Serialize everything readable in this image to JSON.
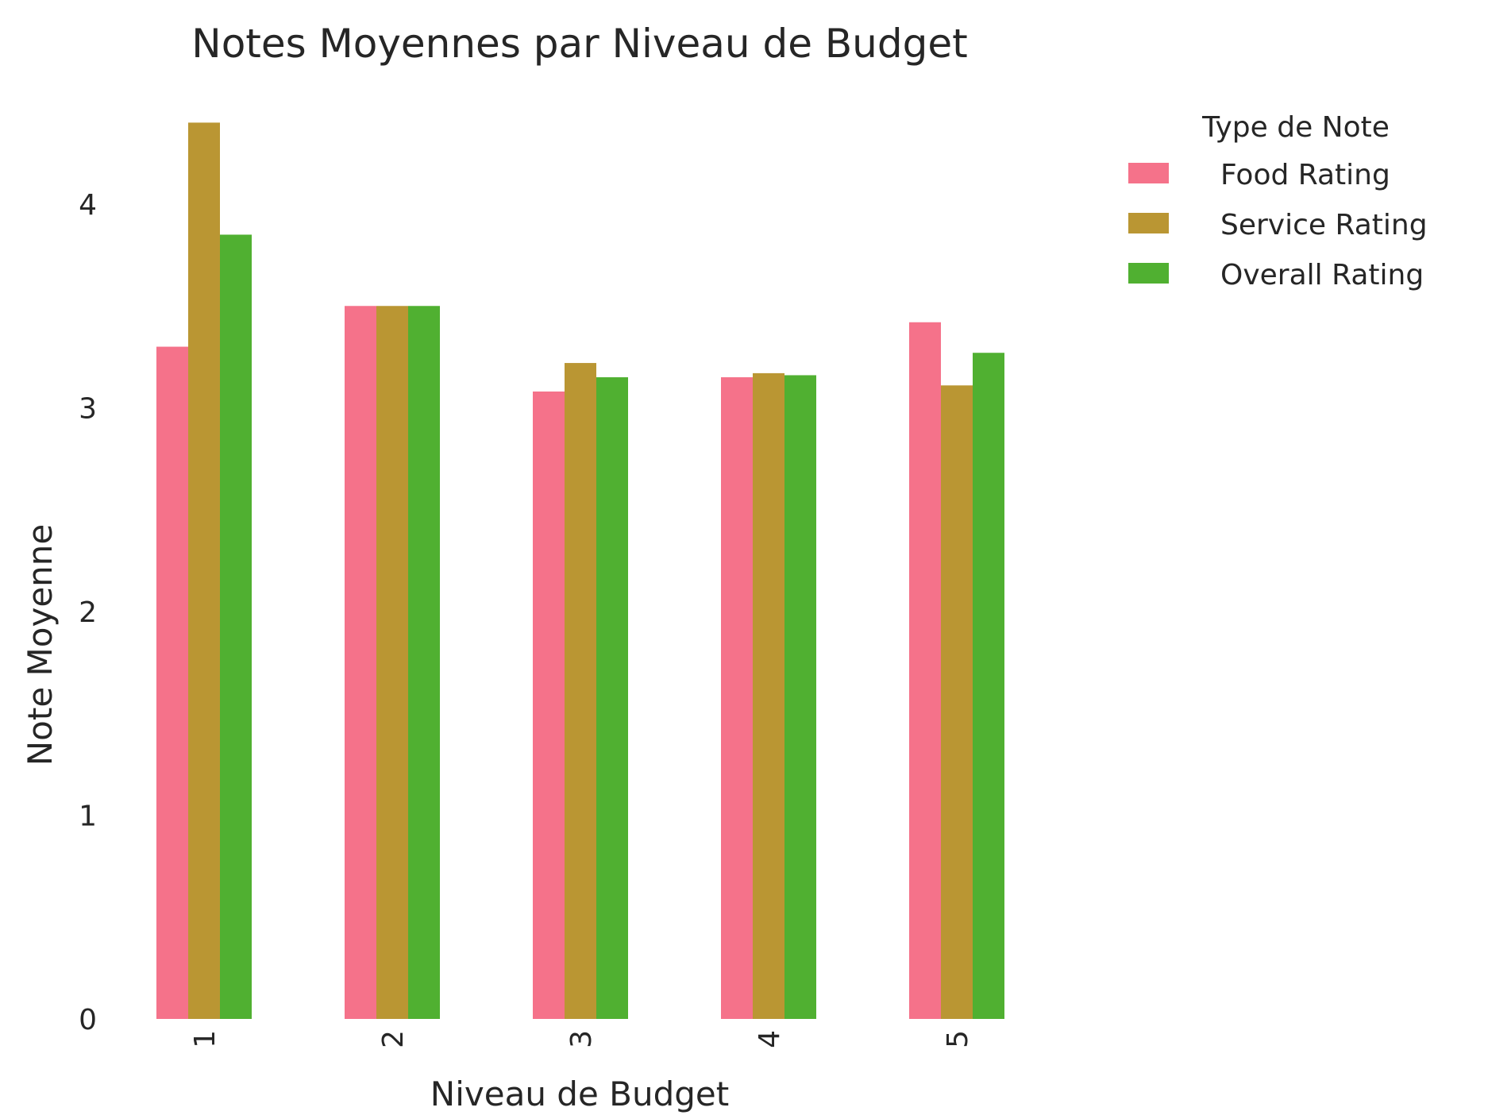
{
  "chart_data": {
    "type": "bar",
    "title": "Notes Moyennes par Niveau de Budget",
    "xlabel": "Niveau de Budget",
    "ylabel": "Note Moyenne",
    "categories": [
      "1",
      "2",
      "3",
      "4",
      "5"
    ],
    "yticks": [
      "0",
      "1",
      "2",
      "3",
      "4"
    ],
    "ylim": [
      0,
      4.5
    ],
    "grid": false,
    "legend": {
      "title": "Type de Note",
      "placement": "outside right, top"
    },
    "series": [
      {
        "name": "Food Rating",
        "color": "#f5728a",
        "values": [
          3.3,
          3.5,
          3.08,
          3.15,
          3.42
        ]
      },
      {
        "name": "Service Rating",
        "color": "#ba9633",
        "values": [
          4.4,
          3.5,
          3.22,
          3.17,
          3.11
        ]
      },
      {
        "name": "Overall Rating",
        "color": "#50b031",
        "values": [
          3.85,
          3.5,
          3.15,
          3.16,
          3.27
        ]
      }
    ]
  }
}
